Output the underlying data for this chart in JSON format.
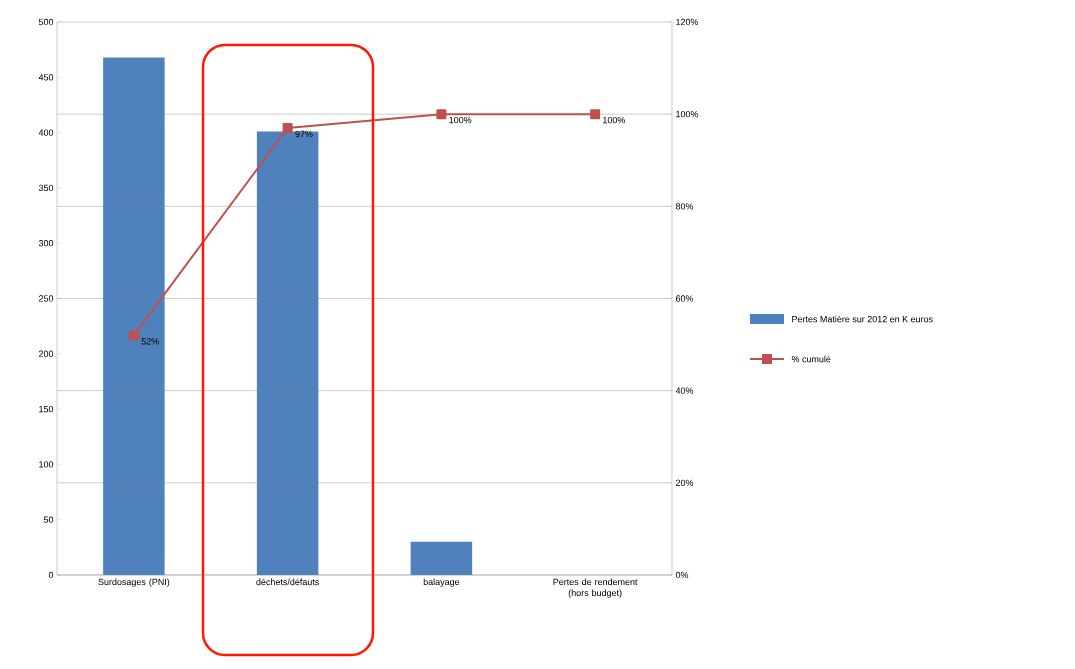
{
  "chart_data": {
    "type": "bar",
    "categories": [
      "Surdosages (PNI)",
      "déchets/défauts",
      "balayage",
      "Pertes de rendement (hors budget)"
    ],
    "series": [
      {
        "name": "Pertes Matière sur 2012 en K euros",
        "color": "#4f81bd",
        "values": [
          468,
          401,
          30,
          0
        ]
      },
      {
        "name": "% cumulé",
        "type": "line",
        "axis": "y2",
        "color": "#c0504d",
        "marker": "square",
        "values": [
          52,
          97,
          100,
          100
        ],
        "value_labels": [
          "52%",
          "97%",
          "100%",
          "100%"
        ]
      }
    ],
    "ylim": [
      0,
      500
    ],
    "yticks": [
      0,
      50,
      100,
      150,
      200,
      250,
      300,
      350,
      400,
      450,
      500
    ],
    "y2lim": [
      0,
      120
    ],
    "y2ticks": [
      {
        "value": 0,
        "label": "0%"
      },
      {
        "value": 20,
        "label": "20%"
      },
      {
        "value": 40,
        "label": "40%"
      },
      {
        "value": 60,
        "label": "60%"
      },
      {
        "value": 80,
        "label": "80%"
      },
      {
        "value": 100,
        "label": "100%"
      },
      {
        "value": 120,
        "label": "120%"
      }
    ],
    "grid": true,
    "legend": "right"
  }
}
